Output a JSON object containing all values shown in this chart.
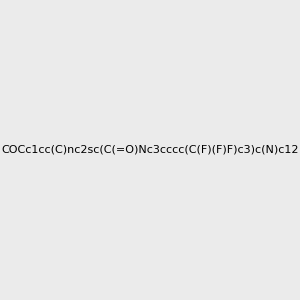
{
  "smiles": "COCc1cc(C)nc2sc(C(=O)Nc3cccc(C(F)(F)F)c3)c(N)c12",
  "image_size": 300,
  "background_color": "#ebebeb",
  "title": ""
}
